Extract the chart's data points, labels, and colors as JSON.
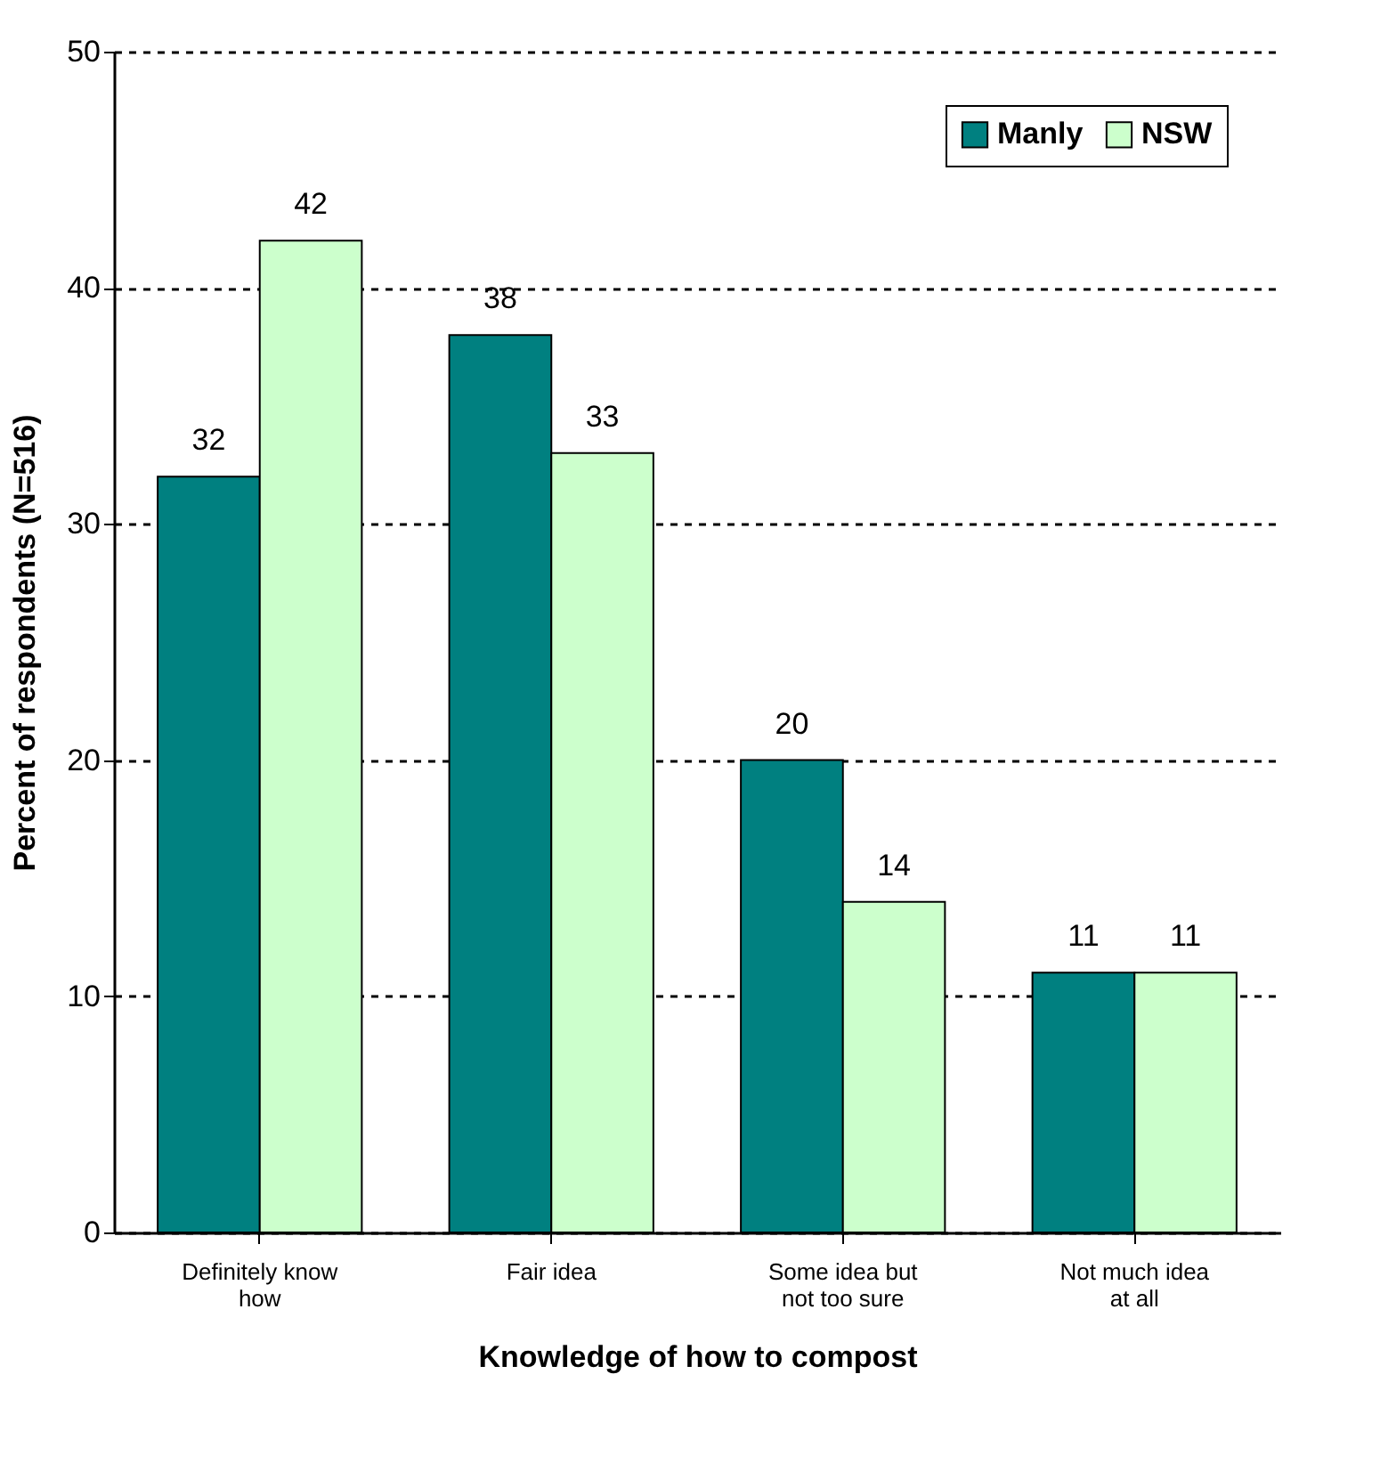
{
  "chart_data": {
    "type": "bar",
    "xlabel": "Knowledge of how to compost",
    "ylabel": "Percent of respondents (N=516)",
    "categories": [
      "Definitely know how",
      "Fair idea",
      "Some idea but not too sure",
      "Not much idea at all"
    ],
    "series": [
      {
        "name": "Manly",
        "color": "#008080",
        "values": [
          32,
          38,
          20,
          11
        ]
      },
      {
        "name": "NSW",
        "color": "#ccffcc",
        "values": [
          42,
          33,
          14,
          11
        ]
      }
    ],
    "ylim": [
      0,
      50
    ],
    "yticks": [
      0,
      10,
      20,
      30,
      40,
      50
    ],
    "grid": "y",
    "legend": "top right",
    "data_labels": true
  }
}
